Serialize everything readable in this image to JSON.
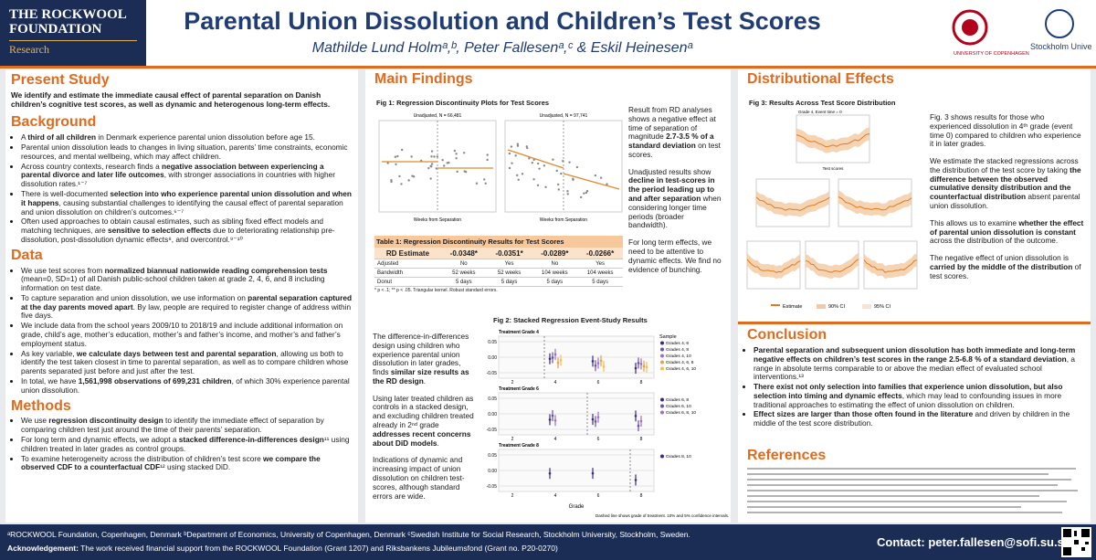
{
  "header": {
    "logo_left": "THE ROCKWOOL FOUNDATION",
    "logo_left_sub": "Research",
    "title": "Parental Union Dissolution and Children’s Test Scores",
    "authors": "Mathilde Lund Holmᵃ,ᵇ, Peter Fallesenᵃ,ᶜ & Eskil Heinesenᵃ",
    "logo_right_1": "UNIVERSITY OF COPENHAGEN",
    "logo_right_2": "Stockholm University"
  },
  "present_study": {
    "heading": "Present Study",
    "text": "We identify and estimate the immediate causal effect of parental separation on Danish children’s cognitive test scores, as well as dynamic and heterogenous long-term effects."
  },
  "background": {
    "heading": "Background",
    "bullets": [
      [
        "A ",
        {
          "bold": "third of all children"
        },
        " in Denmark experience parental union dissolution before age 15."
      ],
      [
        "Parental union dissolution leads to changes in living situation, parents’ time constraints, economic resources, and mental wellbeing, which may affect children."
      ],
      [
        "Across country contexts, research finds a ",
        {
          "bold": "negative association between experiencing a parental divorce and later life outcomes"
        },
        ", with stronger associations in countries with higher dissolution rates.¹⁻⁷"
      ],
      [
        "There is well-documented ",
        {
          "bold": "selection into who experience parental union dissolution and when it happens"
        },
        ", causing substantial challenges to identifying the causal effect of parental separation and union dissolution on children’s outcomes.⁶⁻⁷"
      ],
      [
        "Often used approaches to obtain causal estimates, such as sibling fixed effect models and matching techniques, are ",
        {
          "bold": "sensitive to selection effects"
        },
        " due to deteriorating relationship pre-dissolution, post-dissolution dynamic effects⁸, and overcontrol.⁹⁻¹⁰"
      ]
    ]
  },
  "data_section": {
    "heading": "Data",
    "bullets": [
      [
        "We use test scores from ",
        {
          "bold": "normalized biannual nationwide reading comprehension tests"
        },
        " (mean=0, SD=1) of all Danish public-school children taken at grade 2, 4, 6, and 8 including information on test date."
      ],
      [
        "To capture separation and union dissolution, we use information on ",
        {
          "bold": "parental separation captured at the day parents moved apart"
        },
        ". By law, people are required to register change of address within five days."
      ],
      [
        "We include data from the school years 2009/10 to 2018/19 and include additional information on grade, child’s age, mother’s education, mother’s and father’s income, and mother’s and father’s employment status."
      ],
      [
        "As key variable, ",
        {
          "bold": "we calculate days between test and parental separation"
        },
        ", allowing us both to identify the test taken closest in time to parental separation, as well as to compare children whose parents separated just before and just after the test."
      ],
      [
        "In total, we have ",
        {
          "bold": "1,561,998 observations of 699,231 children"
        },
        ", of which 30% experience parental union dissolution."
      ]
    ]
  },
  "methods": {
    "heading": "Methods",
    "bullets": [
      [
        "We use ",
        {
          "bold": "regression discontinuity design"
        },
        " to identify the immediate effect of separation by comparing children test just around the time of their parents’ separation."
      ],
      [
        "For long term and dynamic effects, we adopt a ",
        {
          "bold": "stacked difference-in-differences design"
        },
        "¹¹ using children treated in later grades as control groups."
      ],
      [
        "To examine heterogeneity across the distribution of children’s test score ",
        {
          "bold": "we compare the observed CDF to a counterfactual CDF"
        },
        "¹² using stacked DiD."
      ]
    ]
  },
  "main_findings": {
    "heading": "Main Findings",
    "fig1_title": "Fig 1: Regression Discontinuity Plots for Test Scores",
    "fig1_panels": [
      "Unadjusted, N = 66,481",
      "Unadjusted, N = 97,741"
    ],
    "fig1_xlabel": "Weeks from Separation",
    "text": [
      [
        "Result from RD analyses shows a negative effect at time of separation of magnitude ",
        {
          "bold": "2.7-3.5 % of a standard deviation"
        },
        " on test scores."
      ],
      [
        "Unadjusted results show ",
        {
          "bold": "decline in test-scores in the period leading up to and after separation"
        },
        " when considering longer time periods (broader bandwidth)."
      ],
      [
        "For long term effects, we need to be attentive to dynamic effects. We find no evidence of bunching."
      ]
    ],
    "table": {
      "title": "Table 1: Regression Discontinuity Results for Test Scores",
      "header": [
        "RD Estimate",
        "-0.0348*",
        "-0.0351*",
        "-0.0289*",
        "-0.0266*"
      ],
      "rows": [
        [
          "Adjusted",
          "No",
          "Yes",
          "No",
          "Yes"
        ],
        [
          "Bandwidth",
          "52 weeks",
          "52 weeks",
          "104 weeks",
          "104 weeks"
        ],
        [
          "Donut",
          "5 days",
          "5 days",
          "5 days",
          "5 days"
        ]
      ],
      "note": "* p < .1; ** p < .05. Triangular kernel. Robust standard errors."
    },
    "fig2": {
      "title": "Fig 2: Stacked Regression Event-Study Results",
      "panels": [
        "Treatment Grade 4",
        "Treatment Grade 6",
        "Treatment Grade 8"
      ],
      "yticks": [
        "0.05",
        "0.00",
        "-0.05"
      ],
      "xticks": [
        "2",
        "4",
        "6",
        "8"
      ],
      "xlabel": "Grade",
      "legend_title": "Sample",
      "legends": [
        [
          "Grades 4, 6",
          "Grades 4, 8",
          "Grades 4, 10",
          "Grades 4, 6, 8",
          "Grades 4, 6, 10"
        ],
        [
          "Grades 6, 8",
          "Grades 6, 10",
          "Grades 6, 8, 10"
        ],
        [
          "Grades 8, 10"
        ]
      ],
      "note": "Dashed line shows grade of treatment. 10% and 5% confidence intervals."
    },
    "fig2_text": [
      [
        "The difference-in-differences design using children who experience parental union dissolution in later grades, finds ",
        {
          "bold": "similar size results as the RD design"
        },
        "."
      ],
      [
        "Using later treated children as controls in a stacked design, and excluding children treated already in 2ⁿᵈ grade ",
        {
          "bold": "addresses recent concerns about DiD models"
        },
        "."
      ],
      [
        "Indications of dynamic and increasing impact of union dissolution on children test-scores, although standard errors are wide."
      ]
    ]
  },
  "distributional": {
    "heading": "Distributional Effects",
    "fig3_title": "Fig 3: Results Across Test Score Distribution",
    "fig3_top_panel": "Grade 4, Event time = 0",
    "fig3_xlabel": "Test scores",
    "fig3_legend": [
      "Estimate",
      "90% CI",
      "95% CI"
    ],
    "text": [
      [
        "Fig. 3 shows results for those who experienced dissolution in 4ᵗʰ grade (event time 0) compared to children who experience it in later grades."
      ],
      [
        "We estimate the stacked regressions across the distribution of the test score by taking ",
        {
          "bold": "the difference between the observed cumulative density distribution and the counterfactual distribution"
        },
        " absent parental union dissolution."
      ],
      [
        "This allows us to examine ",
        {
          "bold": "whether the effect of parental union dissolution is constant"
        },
        " across the distribution of the outcome."
      ],
      [
        "The negative effect of union dissolution is ",
        {
          "bold": "carried by the middle of the distribution"
        },
        " of test scores."
      ]
    ]
  },
  "conclusion": {
    "heading": "Conclusion",
    "bullets": [
      [
        {
          "bold": "Parental separation and subsequent union dissolution has both immediate and long-term negative effects on children’s test scores in the range 2.5-6.8 % of a standard deviation"
        },
        ", a range in absolute terms comparable to or above the median effect of evaluated school interventions.¹³"
      ],
      [
        {
          "bold": "There exist not only selection into families that experience union dissolution, but also selection into timing and dynamic effects"
        },
        ", which may lead to confounding issues in more traditional approaches to estimating the effect of union dissolution on children."
      ],
      [
        {
          "bold": "Effect sizes are larger than those often found in the literature"
        },
        " and driven by children in the middle of the test score distribution."
      ]
    ]
  },
  "references": {
    "heading": "References"
  },
  "footer": {
    "affiliations": "ᵃROCKWOOL Foundation, Copenhagen, Denmark ᵇDepartment of Economics, University of Copenhagen, Denmark ᶜSwedish Institute for Social Research, Stockholm University, Stockholm, Sweden.",
    "ack_label": "Acknowledgement:",
    "ack_text": " The work received financial support from the ROCKWOOL Foundation (Grant 1207) and Riksbankens Jubileumsfond (Grant no. P20-0270)",
    "contact": "Contact: peter.fallesen@sofi.su.se"
  }
}
